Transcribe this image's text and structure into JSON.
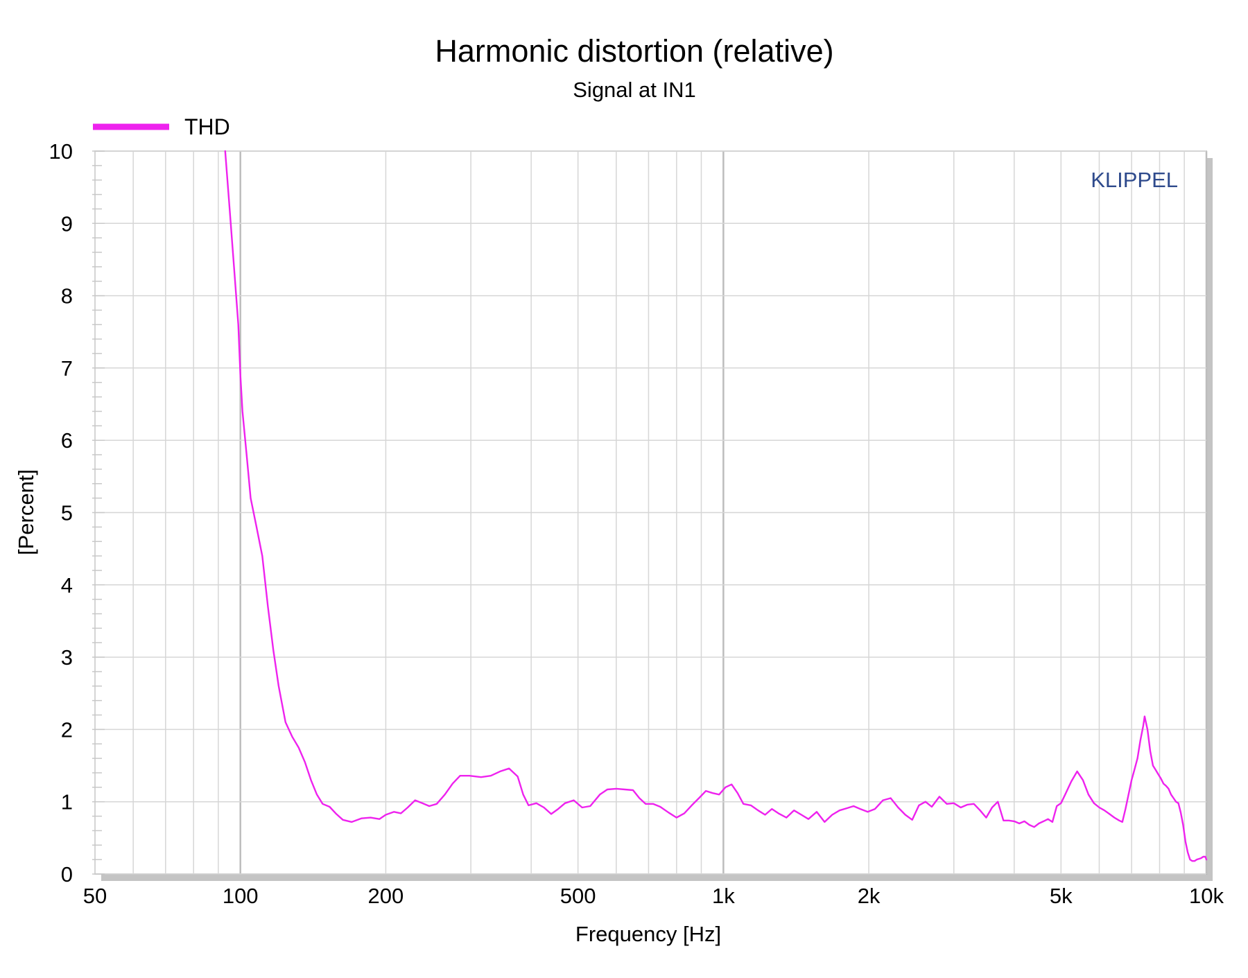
{
  "chart_data": {
    "type": "line",
    "title": "Harmonic distortion (relative)",
    "subtitle": "Signal at IN1",
    "xlabel": "Frequency [Hz]",
    "ylabel": "[Percent]",
    "x_scale": "log",
    "xlim": [
      50,
      10000
    ],
    "ylim": [
      0,
      10
    ],
    "x_ticks": [
      {
        "value": 50,
        "label": "50"
      },
      {
        "value": 100,
        "label": "100"
      },
      {
        "value": 200,
        "label": "200"
      },
      {
        "value": 500,
        "label": "500"
      },
      {
        "value": 1000,
        "label": "1k"
      },
      {
        "value": 2000,
        "label": "2k"
      },
      {
        "value": 5000,
        "label": "5k"
      },
      {
        "value": 10000,
        "label": "10k"
      }
    ],
    "y_ticks": [
      {
        "value": 0,
        "label": "0"
      },
      {
        "value": 1,
        "label": "1"
      },
      {
        "value": 2,
        "label": "2"
      },
      {
        "value": 3,
        "label": "3"
      },
      {
        "value": 4,
        "label": "4"
      },
      {
        "value": 5,
        "label": "5"
      },
      {
        "value": 6,
        "label": "6"
      },
      {
        "value": 7,
        "label": "7"
      },
      {
        "value": 8,
        "label": "8"
      },
      {
        "value": 9,
        "label": "9"
      },
      {
        "value": 10,
        "label": "10"
      }
    ],
    "grid": true,
    "legend_position": "top-left",
    "watermark": "KLIPPEL",
    "colors": {
      "series": "#ee22ee",
      "watermark": "#2e4a8c",
      "grid": "#d6d6d6",
      "shadow": "#c4c4c4"
    },
    "series": [
      {
        "name": "THD",
        "color": "#ee22ee",
        "points": [
          [
            93,
            10.0
          ],
          [
            95,
            9.2
          ],
          [
            97,
            8.4
          ],
          [
            99,
            7.6
          ],
          [
            100,
            6.9
          ],
          [
            101,
            6.4
          ],
          [
            103,
            5.8
          ],
          [
            105,
            5.2
          ],
          [
            108,
            4.8
          ],
          [
            111,
            4.4
          ],
          [
            114,
            3.7
          ],
          [
            117,
            3.1
          ],
          [
            120,
            2.6
          ],
          [
            124,
            2.1
          ],
          [
            128,
            1.9
          ],
          [
            132,
            1.75
          ],
          [
            136,
            1.55
          ],
          [
            140,
            1.3
          ],
          [
            144,
            1.1
          ],
          [
            148,
            0.97
          ],
          [
            153,
            0.93
          ],
          [
            158,
            0.83
          ],
          [
            163,
            0.75
          ],
          [
            170,
            0.72
          ],
          [
            178,
            0.77
          ],
          [
            186,
            0.78
          ],
          [
            194,
            0.76
          ],
          [
            200,
            0.82
          ],
          [
            208,
            0.86
          ],
          [
            215,
            0.84
          ],
          [
            222,
            0.92
          ],
          [
            230,
            1.02
          ],
          [
            238,
            0.98
          ],
          [
            246,
            0.94
          ],
          [
            255,
            0.97
          ],
          [
            265,
            1.1
          ],
          [
            275,
            1.25
          ],
          [
            285,
            1.36
          ],
          [
            298,
            1.36
          ],
          [
            315,
            1.34
          ],
          [
            330,
            1.36
          ],
          [
            345,
            1.42
          ],
          [
            360,
            1.46
          ],
          [
            375,
            1.35
          ],
          [
            385,
            1.1
          ],
          [
            395,
            0.95
          ],
          [
            410,
            0.98
          ],
          [
            425,
            0.92
          ],
          [
            440,
            0.83
          ],
          [
            455,
            0.9
          ],
          [
            470,
            0.98
          ],
          [
            490,
            1.02
          ],
          [
            510,
            0.92
          ],
          [
            530,
            0.94
          ],
          [
            555,
            1.1
          ],
          [
            575,
            1.17
          ],
          [
            600,
            1.18
          ],
          [
            625,
            1.17
          ],
          [
            650,
            1.16
          ],
          [
            670,
            1.05
          ],
          [
            690,
            0.97
          ],
          [
            715,
            0.97
          ],
          [
            740,
            0.93
          ],
          [
            770,
            0.85
          ],
          [
            800,
            0.78
          ],
          [
            830,
            0.84
          ],
          [
            860,
            0.95
          ],
          [
            890,
            1.05
          ],
          [
            920,
            1.15
          ],
          [
            950,
            1.12
          ],
          [
            980,
            1.1
          ],
          [
            1010,
            1.2
          ],
          [
            1040,
            1.24
          ],
          [
            1070,
            1.12
          ],
          [
            1100,
            0.97
          ],
          [
            1140,
            0.95
          ],
          [
            1180,
            0.88
          ],
          [
            1220,
            0.82
          ],
          [
            1260,
            0.9
          ],
          [
            1300,
            0.84
          ],
          [
            1350,
            0.78
          ],
          [
            1400,
            0.88
          ],
          [
            1450,
            0.82
          ],
          [
            1500,
            0.76
          ],
          [
            1560,
            0.86
          ],
          [
            1620,
            0.72
          ],
          [
            1680,
            0.82
          ],
          [
            1740,
            0.88
          ],
          [
            1800,
            0.91
          ],
          [
            1860,
            0.94
          ],
          [
            1920,
            0.9
          ],
          [
            1990,
            0.86
          ],
          [
            2060,
            0.9
          ],
          [
            2140,
            1.02
          ],
          [
            2220,
            1.05
          ],
          [
            2300,
            0.92
          ],
          [
            2380,
            0.82
          ],
          [
            2460,
            0.75
          ],
          [
            2540,
            0.95
          ],
          [
            2620,
            1.0
          ],
          [
            2700,
            0.93
          ],
          [
            2800,
            1.07
          ],
          [
            2900,
            0.97
          ],
          [
            3000,
            0.98
          ],
          [
            3100,
            0.92
          ],
          [
            3200,
            0.96
          ],
          [
            3300,
            0.97
          ],
          [
            3400,
            0.88
          ],
          [
            3500,
            0.78
          ],
          [
            3600,
            0.92
          ],
          [
            3700,
            1.0
          ],
          [
            3800,
            0.74
          ],
          [
            3900,
            0.74
          ],
          [
            4000,
            0.73
          ],
          [
            4100,
            0.7
          ],
          [
            4200,
            0.73
          ],
          [
            4300,
            0.68
          ],
          [
            4400,
            0.65
          ],
          [
            4500,
            0.7
          ],
          [
            4600,
            0.73
          ],
          [
            4700,
            0.76
          ],
          [
            4800,
            0.72
          ],
          [
            4900,
            0.94
          ],
          [
            5000,
            0.98
          ],
          [
            5100,
            1.1
          ],
          [
            5250,
            1.28
          ],
          [
            5400,
            1.42
          ],
          [
            5550,
            1.3
          ],
          [
            5700,
            1.1
          ],
          [
            5850,
            0.98
          ],
          [
            6000,
            0.92
          ],
          [
            6150,
            0.88
          ],
          [
            6300,
            0.83
          ],
          [
            6450,
            0.78
          ],
          [
            6600,
            0.74
          ],
          [
            6700,
            0.72
          ],
          [
            6800,
            0.9
          ],
          [
            6900,
            1.1
          ],
          [
            7000,
            1.3
          ],
          [
            7100,
            1.45
          ],
          [
            7200,
            1.6
          ],
          [
            7300,
            1.85
          ],
          [
            7400,
            2.05
          ],
          [
            7450,
            2.18
          ],
          [
            7550,
            2.0
          ],
          [
            7650,
            1.7
          ],
          [
            7750,
            1.5
          ],
          [
            7850,
            1.44
          ],
          [
            7950,
            1.38
          ],
          [
            8050,
            1.32
          ],
          [
            8150,
            1.25
          ],
          [
            8250,
            1.22
          ],
          [
            8350,
            1.18
          ],
          [
            8450,
            1.1
          ],
          [
            8550,
            1.05
          ],
          [
            8650,
            1.0
          ],
          [
            8750,
            0.98
          ],
          [
            8850,
            0.85
          ],
          [
            8950,
            0.68
          ],
          [
            9050,
            0.45
          ],
          [
            9150,
            0.3
          ],
          [
            9250,
            0.2
          ],
          [
            9350,
            0.18
          ],
          [
            9450,
            0.18
          ],
          [
            9550,
            0.2
          ],
          [
            9650,
            0.21
          ],
          [
            9750,
            0.22
          ],
          [
            9850,
            0.24
          ],
          [
            9950,
            0.24
          ],
          [
            10000,
            0.2
          ]
        ]
      }
    ]
  }
}
